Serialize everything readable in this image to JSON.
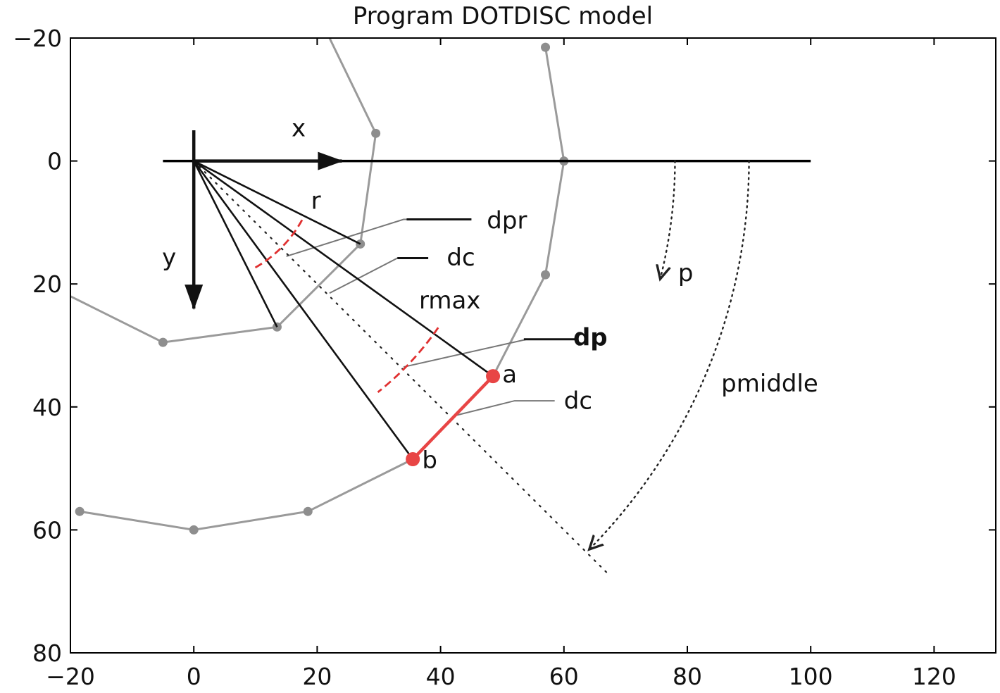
{
  "chart_data": {
    "type": "diagram",
    "title": "Program DOTDISC model",
    "xlim": [
      -20,
      130
    ],
    "ylim": [
      80,
      -20
    ],
    "y_inverted": true,
    "x_ticks": [
      -20,
      0,
      20,
      40,
      60,
      80,
      100,
      120
    ],
    "y_ticks": [
      -20,
      0,
      20,
      40,
      60,
      80
    ],
    "x_tick_labels": [
      "−20",
      "0",
      "20",
      "40",
      "60",
      "80",
      "100",
      "120"
    ],
    "y_tick_labels": [
      "−20",
      "0",
      "20",
      "40",
      "60",
      "80"
    ],
    "x_axis_line": {
      "from": [
        -5,
        0
      ],
      "to": [
        100,
        0
      ]
    },
    "axis_arrows": {
      "x": {
        "from": [
          0,
          0
        ],
        "to": [
          24,
          0
        ],
        "label": "x",
        "label_at": [
          17,
          -4
        ]
      },
      "y": {
        "from": [
          0,
          -5
        ],
        "to": [
          0,
          24
        ],
        "label": "y",
        "label_at": [
          -4,
          17
        ]
      }
    },
    "interfaces": [
      {
        "name": "",
        "points": [
          [
            22,
            -20
          ],
          [
            29.5,
            -4.5
          ],
          [
            27,
            13.5
          ],
          [
            13.5,
            27
          ],
          [
            -5,
            29.5
          ],
          [
            -20,
            22
          ]
        ],
        "markers": [
          [
            29.5,
            -4.5
          ],
          [
            27,
            13.5
          ],
          [
            13.5,
            27
          ],
          [
            -5,
            29.5
          ]
        ]
      },
      {
        "name": "",
        "points": [
          [
            57,
            -18.5
          ],
          [
            60,
            0
          ],
          [
            57,
            18.5
          ],
          [
            48.5,
            35
          ],
          [
            35.5,
            48.5
          ],
          [
            18.5,
            57
          ],
          [
            0,
            60
          ],
          [
            -18.5,
            57
          ]
        ],
        "markers": [
          [
            57,
            -18.5
          ],
          [
            60,
            0
          ],
          [
            57,
            18.5
          ],
          [
            18.5,
            57
          ],
          [
            0,
            60
          ],
          [
            -18.5,
            57
          ]
        ]
      }
    ],
    "rays": [
      {
        "to": [
          27,
          13.5
        ]
      },
      {
        "to": [
          13.5,
          27
        ]
      },
      {
        "to": [
          48.5,
          35
        ]
      },
      {
        "to": [
          35.5,
          48.5
        ]
      }
    ],
    "dotted_ray": {
      "from": [
        0,
        0
      ],
      "to": [
        67.5,
        67.5
      ]
    },
    "red_segment": {
      "from": [
        48.5,
        35
      ],
      "to": [
        35.5,
        48.5
      ]
    },
    "points": [
      {
        "label": "a",
        "at": [
          48.5,
          35
        ],
        "label_at": [
          50,
          36
        ]
      },
      {
        "label": "b",
        "at": [
          35.5,
          48.5
        ],
        "label_at": [
          37,
          50
        ]
      }
    ],
    "annotations": [
      {
        "label": "r",
        "at": [
          19,
          7.8
        ]
      },
      {
        "label": "dpr",
        "at": [
          47.5,
          11
        ]
      },
      {
        "label": "dc",
        "at": [
          41,
          17
        ]
      },
      {
        "label": "rmax",
        "at": [
          36.5,
          24
        ]
      },
      {
        "label": "dp",
        "at": [
          61.5,
          30
        ],
        "bold": true
      },
      {
        "label": "dc",
        "at": [
          60,
          40.3
        ]
      },
      {
        "label": "p",
        "at": [
          78.5,
          19.5
        ]
      },
      {
        "label": "pmiddle",
        "at": [
          85.5,
          37.5
        ]
      }
    ]
  }
}
